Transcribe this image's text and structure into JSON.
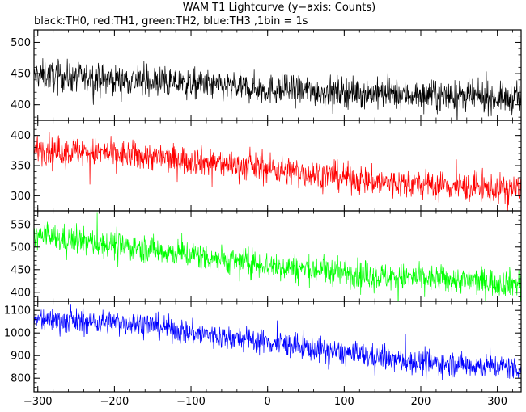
{
  "chart_data": {
    "type": "line",
    "title": "WAM T1 Lightcurve (y−axis: Counts)",
    "subtitle": "black:TH0, red:TH1, green:TH2, blue:TH3 ,1bin = 1s",
    "xlabel": "",
    "ylabel": "",
    "xlim": [
      -305,
      331
    ],
    "x_ticks": [
      -300,
      -200,
      -100,
      0,
      100,
      200,
      300
    ],
    "x_tick_labels": [
      "−300",
      "−200",
      "−100",
      "0",
      "100",
      "200",
      "300"
    ],
    "grid": false,
    "legend": "none",
    "panels": [
      {
        "name": "TH0",
        "color": "#000000",
        "ylim": [
          375,
          520
        ],
        "y_ticks": [
          400,
          450,
          500
        ],
        "trend": [
          {
            "x": -305,
            "y": 448
          },
          {
            "x": -150,
            "y": 437
          },
          {
            "x": 0,
            "y": 425
          },
          {
            "x": 150,
            "y": 418
          },
          {
            "x": 331,
            "y": 410
          }
        ],
        "noise_amplitude": 22
      },
      {
        "name": "TH1",
        "color": "#ff0000",
        "ylim": [
          275,
          425
        ],
        "y_ticks": [
          300,
          350,
          400
        ],
        "trend": [
          {
            "x": -305,
            "y": 378
          },
          {
            "x": -150,
            "y": 365
          },
          {
            "x": 0,
            "y": 345
          },
          {
            "x": 70,
            "y": 335
          },
          {
            "x": 150,
            "y": 322
          },
          {
            "x": 331,
            "y": 310
          }
        ],
        "noise_amplitude": 22
      },
      {
        "name": "TH2",
        "color": "#00ff00",
        "ylim": [
          380,
          580
        ],
        "y_ticks": [
          400,
          450,
          500,
          550
        ],
        "trend": [
          {
            "x": -305,
            "y": 525
          },
          {
            "x": -150,
            "y": 495
          },
          {
            "x": 0,
            "y": 460
          },
          {
            "x": 150,
            "y": 435
          },
          {
            "x": 331,
            "y": 420
          }
        ],
        "noise_amplitude": 28
      },
      {
        "name": "TH3",
        "color": "#0000ff",
        "ylim": [
          740,
          1140
        ],
        "y_ticks": [
          800,
          900,
          1000,
          1100
        ],
        "trend": [
          {
            "x": -305,
            "y": 1060
          },
          {
            "x": -160,
            "y": 1040
          },
          {
            "x": -100,
            "y": 1000
          },
          {
            "x": 0,
            "y": 960
          },
          {
            "x": 100,
            "y": 910
          },
          {
            "x": 200,
            "y": 870
          },
          {
            "x": 331,
            "y": 845
          }
        ],
        "noise_amplitude": 50
      }
    ]
  }
}
